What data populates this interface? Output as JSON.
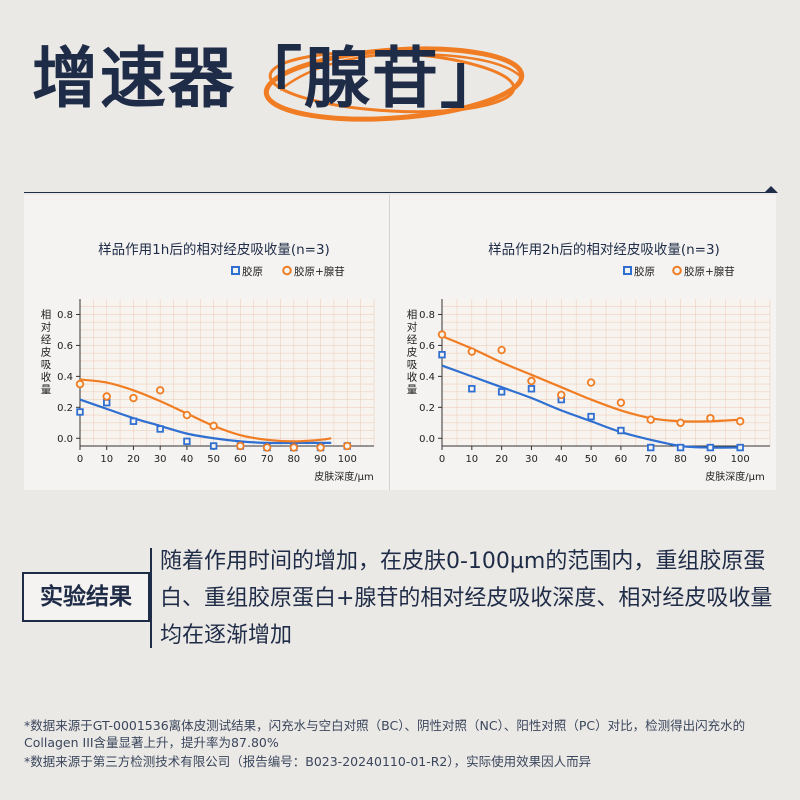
{
  "header": {
    "title_main": "增速器",
    "title_open": "「",
    "title_keyword": "腺苷",
    "title_close": "」"
  },
  "chart_data": [
    {
      "type": "scatter",
      "title": "样品作用1h后的相对经皮吸收量(n=3)",
      "ylabel": "相对经皮吸收量",
      "xlabel": "皮肤深度/µm",
      "xlim": [
        0,
        110
      ],
      "ylim": [
        -0.05,
        0.9
      ],
      "xticks": [
        "0",
        "10",
        "20",
        "30",
        "40",
        "50",
        "60",
        "70",
        "80",
        "90",
        "100"
      ],
      "yticks": [
        "0.8",
        "0.6",
        "0.4",
        "0.2",
        "0.0"
      ],
      "legend": "top-right",
      "grid": true,
      "series": [
        {
          "name": "胶原",
          "color": "#2f6fd1",
          "marker": "square",
          "x": [
            0,
            10,
            20,
            30,
            40,
            50,
            60,
            70,
            80,
            90,
            100
          ],
          "y": [
            0.17,
            0.23,
            0.11,
            0.06,
            -0.02,
            -0.05,
            -0.05,
            -0.06,
            -0.06,
            -0.06,
            -0.05
          ],
          "fit_x": [
            0,
            10,
            20,
            30,
            40,
            50,
            60,
            70,
            80,
            90,
            94
          ],
          "fit_y": [
            0.25,
            0.19,
            0.13,
            0.08,
            0.03,
            0.0,
            -0.02,
            -0.03,
            -0.03,
            -0.03,
            -0.03
          ]
        },
        {
          "name": "胶原+腺苷",
          "color": "#f07d23",
          "marker": "circle",
          "x": [
            0,
            10,
            20,
            30,
            40,
            50,
            60,
            70,
            80,
            90,
            100
          ],
          "y": [
            0.35,
            0.27,
            0.26,
            0.31,
            0.15,
            0.08,
            -0.05,
            -0.06,
            -0.06,
            -0.06,
            -0.05
          ],
          "fit_x": [
            0,
            10,
            20,
            30,
            40,
            50,
            60,
            70,
            80,
            90,
            94
          ],
          "fit_y": [
            0.38,
            0.36,
            0.31,
            0.24,
            0.16,
            0.08,
            0.02,
            -0.01,
            -0.02,
            -0.01,
            0.0
          ]
        }
      ]
    },
    {
      "type": "scatter",
      "title": "样品作用2h后的相对经皮吸收量(n=3)",
      "ylabel": "相对经皮吸收量",
      "xlabel": "皮肤深度/µm",
      "xlim": [
        0,
        110
      ],
      "ylim": [
        -0.05,
        0.9
      ],
      "xticks": [
        "0",
        "10",
        "20",
        "30",
        "40",
        "50",
        "60",
        "70",
        "80",
        "90",
        "100"
      ],
      "yticks": [
        "0.8",
        "0.6",
        "0.4",
        "0.2",
        "0.0"
      ],
      "legend": "top-right",
      "grid": true,
      "series": [
        {
          "name": "胶原",
          "color": "#2f6fd1",
          "marker": "square",
          "x": [
            0,
            10,
            20,
            30,
            40,
            50,
            60,
            70,
            80,
            90,
            100
          ],
          "y": [
            0.54,
            0.32,
            0.3,
            0.32,
            0.25,
            0.14,
            0.05,
            -0.06,
            -0.06,
            -0.06,
            -0.06
          ],
          "fit_x": [
            0,
            10,
            20,
            30,
            40,
            50,
            60,
            70,
            80,
            90,
            100
          ],
          "fit_y": [
            0.47,
            0.4,
            0.33,
            0.26,
            0.18,
            0.11,
            0.04,
            -0.01,
            -0.05,
            -0.06,
            -0.06
          ]
        },
        {
          "name": "胶原+腺苷",
          "color": "#f07d23",
          "marker": "circle",
          "x": [
            0,
            10,
            20,
            30,
            40,
            50,
            60,
            70,
            80,
            90,
            100
          ],
          "y": [
            0.67,
            0.56,
            0.57,
            0.37,
            0.28,
            0.36,
            0.23,
            0.12,
            0.1,
            0.13,
            0.11
          ],
          "fit_x": [
            0,
            10,
            20,
            30,
            40,
            50,
            60,
            70,
            80,
            90,
            100
          ],
          "fit_y": [
            0.66,
            0.58,
            0.49,
            0.41,
            0.33,
            0.25,
            0.18,
            0.13,
            0.11,
            0.11,
            0.12
          ]
        }
      ]
    }
  ],
  "result": {
    "label": "实验结果",
    "text": "随着作用时间的增加，在皮肤0-100µm的范围内，重组胶原蛋白、重组胶原蛋白+腺苷的相对经皮吸收深度、相对经皮吸收量均在逐渐增加"
  },
  "footnotes": [
    "*数据来源于GT-0001536离体皮测试结果，闪充水与空白对照（BC）、阴性对照（NC）、阳性对照（PC）对比，检测得出闪充水的Collagen III含量显著上升，提升率为87.80%",
    "*数据来源于第三方检测技术有限公司（报告编号：B023-20240110-01-R2），实际使用效果因人而异"
  ]
}
